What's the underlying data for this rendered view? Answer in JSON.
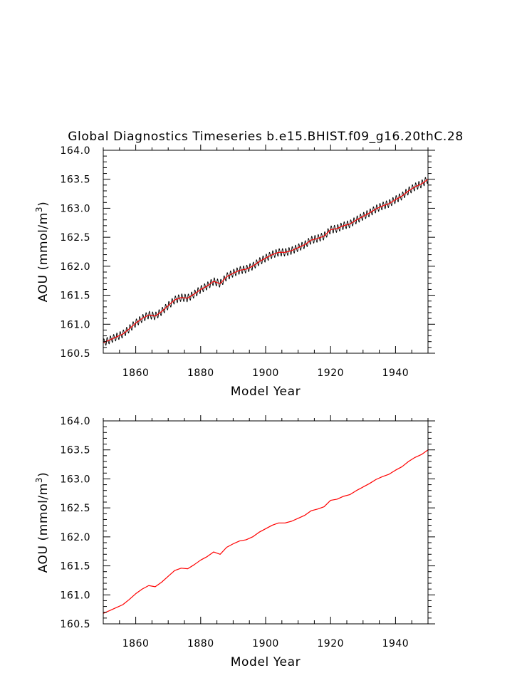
{
  "title": "Global Diagnostics Timeseries b.e15.BHIST.f09_g16.20thC.28",
  "colors": {
    "monthly": "#000000",
    "annual": "#ff0000",
    "axes": "#000000",
    "background": "#ffffff"
  },
  "chart_data": [
    {
      "type": "line",
      "title": "Global Diagnostics Timeseries b.e15.BHIST.f09_g16.20thC.28",
      "xlabel": "Model Year",
      "ylabel": "AOU (mmol/m3)",
      "ylabel_parts": {
        "main": "AOU  (mmol/m",
        "sup": "3",
        "close": ")"
      },
      "xlim": [
        1850,
        1950
      ],
      "ylim": [
        160.5,
        164.0
      ],
      "xticks": [
        1860,
        1880,
        1900,
        1920,
        1940
      ],
      "xtick_labels": [
        "1860",
        "1880",
        "1900",
        "1920",
        "1940"
      ],
      "yticks": [
        160.5,
        161.0,
        161.5,
        162.0,
        162.5,
        163.0,
        163.5,
        164.0
      ],
      "ytick_labels": [
        "160.5",
        "161.0",
        "161.5",
        "162.0",
        "162.5",
        "163.0",
        "163.5",
        "164.0"
      ],
      "grid": false,
      "series": [
        {
          "style": "monthly",
          "color": "#000000",
          "seasonal_amplitude": 0.06
        },
        {
          "style": "annual",
          "color": "#ff0000"
        }
      ],
      "x": [
        1850,
        1852,
        1854,
        1856,
        1858,
        1860,
        1862,
        1864,
        1866,
        1868,
        1870,
        1872,
        1874,
        1876,
        1878,
        1880,
        1882,
        1884,
        1886,
        1888,
        1890,
        1892,
        1894,
        1896,
        1898,
        1900,
        1902,
        1904,
        1906,
        1908,
        1910,
        1912,
        1914,
        1916,
        1918,
        1920,
        1922,
        1924,
        1926,
        1928,
        1930,
        1932,
        1934,
        1936,
        1938,
        1940,
        1942,
        1944,
        1946,
        1948,
        1950
      ],
      "values": [
        160.68,
        160.73,
        160.78,
        160.83,
        160.92,
        161.02,
        161.1,
        161.16,
        161.14,
        161.22,
        161.32,
        161.42,
        161.46,
        161.45,
        161.52,
        161.6,
        161.66,
        161.74,
        161.7,
        161.82,
        161.88,
        161.93,
        161.95,
        162.0,
        162.08,
        162.14,
        162.2,
        162.24,
        162.24,
        162.27,
        162.32,
        162.37,
        162.45,
        162.48,
        162.52,
        162.63,
        162.65,
        162.7,
        162.73,
        162.8,
        162.86,
        162.92,
        162.99,
        163.04,
        163.08,
        163.15,
        163.21,
        163.3,
        163.37,
        163.42,
        163.5
      ]
    },
    {
      "type": "line",
      "xlabel": "Model Year",
      "ylabel": "AOU (mmol/m3)",
      "ylabel_parts": {
        "main": "AOU  (mmol/m",
        "sup": "3",
        "close": ")"
      },
      "xlim": [
        1850,
        1950
      ],
      "ylim": [
        160.5,
        164.0
      ],
      "xticks": [
        1860,
        1880,
        1900,
        1920,
        1940
      ],
      "xtick_labels": [
        "1860",
        "1880",
        "1900",
        "1920",
        "1940"
      ],
      "yticks": [
        160.5,
        161.0,
        161.5,
        162.0,
        162.5,
        163.0,
        163.5,
        164.0
      ],
      "ytick_labels": [
        "160.5",
        "161.0",
        "161.5",
        "162.0",
        "162.5",
        "163.0",
        "163.5",
        "164.0"
      ],
      "grid": false,
      "series": [
        {
          "style": "annual",
          "color": "#ff0000"
        }
      ],
      "x": [
        1850,
        1852,
        1854,
        1856,
        1858,
        1860,
        1862,
        1864,
        1866,
        1868,
        1870,
        1872,
        1874,
        1876,
        1878,
        1880,
        1882,
        1884,
        1886,
        1888,
        1890,
        1892,
        1894,
        1896,
        1898,
        1900,
        1902,
        1904,
        1906,
        1908,
        1910,
        1912,
        1914,
        1916,
        1918,
        1920,
        1922,
        1924,
        1926,
        1928,
        1930,
        1932,
        1934,
        1936,
        1938,
        1940,
        1942,
        1944,
        1946,
        1948,
        1950
      ],
      "values": [
        160.68,
        160.73,
        160.78,
        160.83,
        160.92,
        161.02,
        161.1,
        161.16,
        161.14,
        161.22,
        161.32,
        161.42,
        161.46,
        161.45,
        161.52,
        161.6,
        161.66,
        161.74,
        161.7,
        161.82,
        161.88,
        161.93,
        161.95,
        162.0,
        162.08,
        162.14,
        162.2,
        162.24,
        162.24,
        162.27,
        162.32,
        162.37,
        162.45,
        162.48,
        162.52,
        162.63,
        162.65,
        162.7,
        162.73,
        162.8,
        162.86,
        162.92,
        162.99,
        163.04,
        163.08,
        163.15,
        163.21,
        163.3,
        163.37,
        163.42,
        163.5
      ]
    }
  ]
}
